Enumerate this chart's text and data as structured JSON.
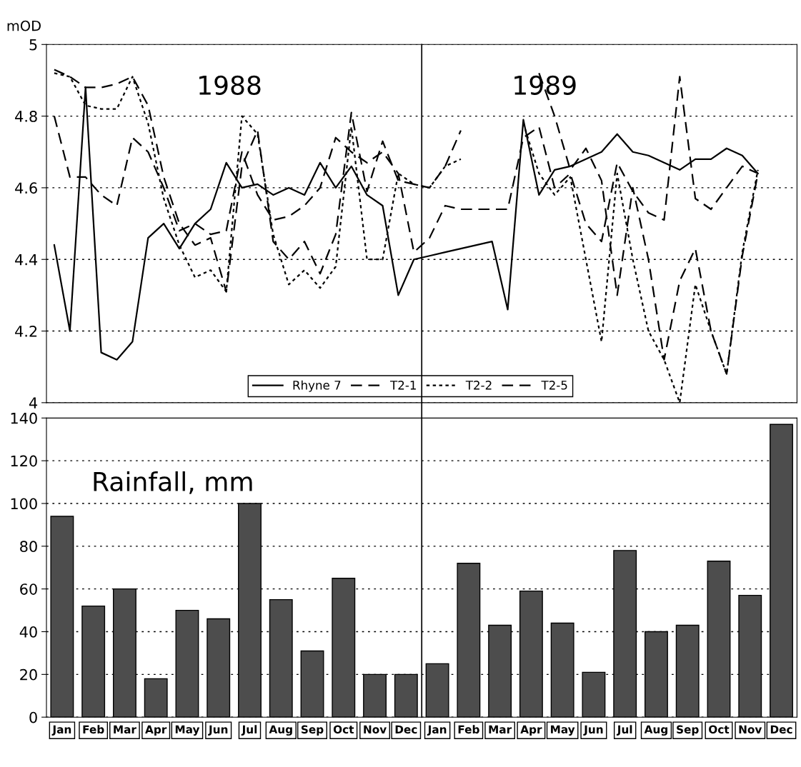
{
  "chart_data": [
    {
      "type": "line",
      "ylabel": "mOD",
      "ylim": [
        4,
        5
      ],
      "yticks": [
        4,
        4.2,
        4.4,
        4.6,
        4.8,
        5
      ],
      "grid": "y",
      "tick_labels": "y",
      "legend": "bottom",
      "marker": "none",
      "annotations": [
        "1988",
        "1989"
      ],
      "categories": [
        null,
        null,
        null,
        null,
        null,
        null,
        null,
        null,
        null,
        null,
        null,
        null,
        null,
        null,
        null,
        null,
        null,
        null,
        null,
        null,
        null,
        null,
        null,
        null,
        null,
        null,
        null,
        null,
        null,
        null,
        null,
        null,
        null,
        null,
        null,
        null,
        null,
        null,
        null,
        null,
        null,
        null,
        null,
        null,
        null,
        null,
        null,
        null
      ],
      "series": [
        {
          "name": "Rhyne 7",
          "color": "#000000",
          "line_style": "solid",
          "values": [
            4.44,
            4.2,
            4.88,
            4.14,
            4.12,
            4.17,
            4.46,
            4.5,
            4.43,
            4.5,
            4.54,
            4.67,
            4.6,
            4.61,
            4.58,
            4.6,
            4.58,
            4.67,
            4.6,
            4.66,
            4.58,
            4.55,
            4.3,
            4.4,
            4.41,
            4.42,
            4.43,
            4.44,
            4.45,
            4.26,
            4.79,
            4.58,
            4.65,
            4.66,
            4.68,
            4.7,
            4.75,
            4.7,
            4.69,
            4.67,
            4.65,
            4.68,
            4.68,
            4.71,
            4.69,
            4.64,
            null,
            null
          ]
        },
        {
          "name": "T2-1",
          "color": "#000000",
          "line_style": "dashed",
          "values": [
            4.8,
            4.63,
            4.63,
            4.58,
            4.55,
            4.74,
            4.7,
            4.6,
            4.48,
            4.5,
            4.47,
            4.48,
            4.7,
            4.58,
            4.51,
            4.52,
            4.55,
            4.6,
            4.74,
            4.7,
            4.67,
            4.7,
            4.64,
            4.42,
            4.46,
            4.55,
            4.54,
            4.54,
            4.54,
            4.54,
            4.74,
            4.77,
            4.6,
            4.64,
            4.5,
            4.45,
            4.67,
            4.59,
            4.53,
            4.51,
            4.91,
            4.57,
            4.54,
            4.6,
            4.66,
            4.64,
            null,
            null
          ]
        },
        {
          "name": "T2-2",
          "color": "#000000",
          "line_style": "dotted",
          "values": [
            4.92,
            4.91,
            4.83,
            4.82,
            4.82,
            4.91,
            4.78,
            4.57,
            4.44,
            4.35,
            4.37,
            4.31,
            4.8,
            4.75,
            4.47,
            4.33,
            4.37,
            4.32,
            4.38,
            4.77,
            4.4,
            4.4,
            4.64,
            4.61,
            4.6,
            4.66,
            4.68,
            null,
            null,
            null,
            4.78,
            4.64,
            4.58,
            4.63,
            4.4,
            4.17,
            4.64,
            4.4,
            4.2,
            4.12,
            4.0,
            4.33,
            4.2,
            4.08,
            4.42,
            4.65,
            null,
            null
          ]
        },
        {
          "name": "T2-5",
          "color": "#000000",
          "line_style": "dashed",
          "values": [
            4.93,
            4.91,
            4.88,
            4.88,
            4.89,
            4.91,
            4.83,
            4.63,
            4.5,
            4.44,
            4.46,
            4.31,
            4.66,
            4.76,
            4.45,
            4.4,
            4.45,
            4.36,
            4.47,
            4.81,
            4.59,
            4.73,
            4.62,
            4.61,
            4.6,
            4.66,
            4.76,
            null,
            null,
            null,
            null,
            4.92,
            4.8,
            4.65,
            4.71,
            4.62,
            4.3,
            4.6,
            4.4,
            4.12,
            4.34,
            4.43,
            4.2,
            4.08,
            4.41,
            4.64,
            null,
            null
          ]
        }
      ]
    },
    {
      "type": "bar",
      "categories": [
        "Jan",
        "Feb",
        "Mar",
        "Apr",
        "May",
        "Jun",
        "Jul",
        "Aug",
        "Sep",
        "Oct",
        "Nov",
        "Dec",
        "Jan",
        "Feb",
        "Mar",
        "Apr",
        "May",
        "Jun",
        "Jul",
        "Aug",
        "Sep",
        "Oct",
        "Nov",
        "Dec"
      ],
      "values": [
        94,
        52,
        60,
        18,
        50,
        46,
        100,
        55,
        31,
        65,
        20,
        20,
        25,
        72,
        43,
        59,
        44,
        21,
        78,
        40,
        43,
        73,
        57,
        137
      ],
      "color": "#4d4d4d",
      "ylim": [
        0,
        140
      ],
      "yticks": [
        0,
        20,
        40,
        60,
        80,
        100,
        120,
        140
      ],
      "grid": "y",
      "annotations": [
        "Rainfall, mm"
      ]
    }
  ]
}
